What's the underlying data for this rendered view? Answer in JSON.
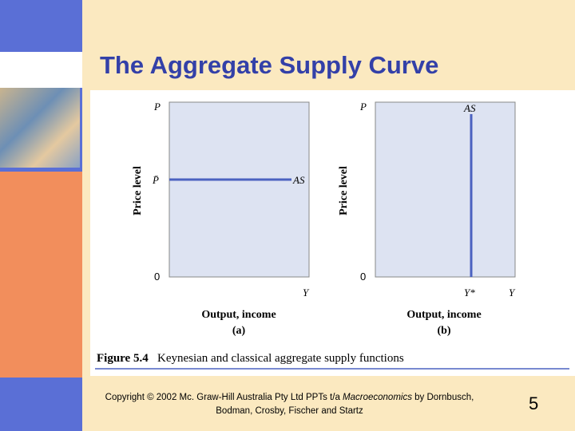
{
  "slide": {
    "title": "The Aggregate Supply Curve",
    "panels": [
      {
        "y_axis": "P",
        "y_label": "Price level",
        "level_label": "P̄",
        "curve_label": "AS",
        "origin": "0",
        "x_axis": "Y",
        "x_label": "Output, income",
        "letter": "(a)"
      },
      {
        "y_axis": "P",
        "y_label": "Price level",
        "curve_label": "AS",
        "origin": "0",
        "x_axis": "Y",
        "potential_label": "Y*",
        "x_label": "Output, income",
        "letter": "(b)"
      }
    ],
    "caption": {
      "number": "Figure 5.4",
      "text": "Keynesian and classical aggregate supply functions"
    },
    "footer": {
      "before": "Copyright © 2002 Mc. Graw-Hill Australia Pty Ltd PPTs t/a ",
      "italic": "Macroeconomics",
      "after": " by Dornbusch, Bodman, Crosby, Fischer and Startz"
    },
    "page_number": "5"
  }
}
